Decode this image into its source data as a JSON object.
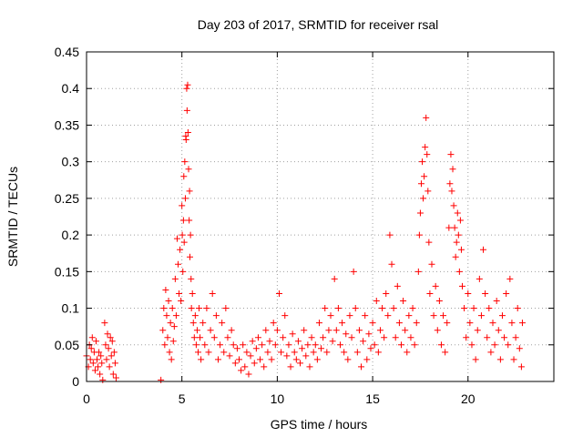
{
  "chart_data": {
    "type": "scatter",
    "title": "Day 203 of 2017, SRMTID for receiver rsal",
    "xlabel": "GPS time / hours",
    "ylabel": "SRMTID / TECUs",
    "xlim": [
      0,
      24.5
    ],
    "ylim": [
      0,
      0.45
    ],
    "xticks": [
      0,
      5,
      10,
      15,
      20
    ],
    "xtick_labels": [
      "0",
      "5",
      "10",
      "15",
      "20"
    ],
    "yticks": [
      0,
      0.05,
      0.1,
      0.15,
      0.2,
      0.25,
      0.3,
      0.35,
      0.4,
      0.45
    ],
    "ytick_labels": [
      "0",
      "0.05",
      "0.1",
      "0.15",
      "0.2",
      "0.25",
      "0.3",
      "0.35",
      "0.4",
      "0.45"
    ],
    "grid": true,
    "marker": "+",
    "color": "#ff0000",
    "series": [
      {
        "name": "SRMTID",
        "points": [
          [
            0.0,
            0.035
          ],
          [
            0.1,
            0.02
          ],
          [
            0.15,
            0.05
          ],
          [
            0.2,
            0.03
          ],
          [
            0.25,
            0.045
          ],
          [
            0.3,
            0.06
          ],
          [
            0.35,
            0.025
          ],
          [
            0.4,
            0.04
          ],
          [
            0.45,
            0.015
          ],
          [
            0.5,
            0.055
          ],
          [
            0.55,
            0.03
          ],
          [
            0.6,
            0.02
          ],
          [
            0.65,
            0.04
          ],
          [
            0.7,
            0.01
          ],
          [
            0.75,
            0.035
          ],
          [
            0.8,
            0.025
          ],
          [
            0.85,
            0.002
          ],
          [
            0.95,
            0.08
          ],
          [
            1.0,
            0.05
          ],
          [
            1.05,
            0.03
          ],
          [
            1.1,
            0.065
          ],
          [
            1.15,
            0.045
          ],
          [
            1.2,
            0.02
          ],
          [
            1.25,
            0.06
          ],
          [
            1.3,
            0.035
          ],
          [
            1.35,
            0.055
          ],
          [
            1.4,
            0.01
          ],
          [
            1.45,
            0.04
          ],
          [
            1.5,
            0.025
          ],
          [
            1.55,
            0.005
          ],
          [
            3.9,
            0.002
          ],
          [
            4.0,
            0.07
          ],
          [
            4.05,
            0.1
          ],
          [
            4.1,
            0.05
          ],
          [
            4.15,
            0.125
          ],
          [
            4.2,
            0.09
          ],
          [
            4.25,
            0.06
          ],
          [
            4.3,
            0.11
          ],
          [
            4.35,
            0.04
          ],
          [
            4.4,
            0.08
          ],
          [
            4.45,
            0.03
          ],
          [
            4.5,
            0.1
          ],
          [
            4.55,
            0.055
          ],
          [
            4.6,
            0.075
          ],
          [
            4.65,
            0.14
          ],
          [
            4.7,
            0.09
          ],
          [
            4.75,
            0.195
          ],
          [
            4.8,
            0.16
          ],
          [
            4.85,
            0.12
          ],
          [
            4.9,
            0.18
          ],
          [
            4.95,
            0.11
          ],
          [
            5.0,
            0.24
          ],
          [
            5.02,
            0.2
          ],
          [
            5.05,
            0.15
          ],
          [
            5.08,
            0.22
          ],
          [
            5.1,
            0.28
          ],
          [
            5.12,
            0.19
          ],
          [
            5.15,
            0.3
          ],
          [
            5.18,
            0.25
          ],
          [
            5.2,
            0.335
          ],
          [
            5.22,
            0.33
          ],
          [
            5.25,
            0.4
          ],
          [
            5.27,
            0.37
          ],
          [
            5.3,
            0.405
          ],
          [
            5.32,
            0.34
          ],
          [
            5.35,
            0.29
          ],
          [
            5.38,
            0.22
          ],
          [
            5.4,
            0.26
          ],
          [
            5.42,
            0.17
          ],
          [
            5.45,
            0.2
          ],
          [
            5.48,
            0.14
          ],
          [
            5.5,
            0.1
          ],
          [
            5.55,
            0.12
          ],
          [
            5.6,
            0.08
          ],
          [
            5.65,
            0.06
          ],
          [
            5.7,
            0.09
          ],
          [
            5.75,
            0.05
          ],
          [
            5.8,
            0.07
          ],
          [
            5.85,
            0.04
          ],
          [
            5.9,
            0.1
          ],
          [
            5.95,
            0.06
          ],
          [
            6.0,
            0.03
          ],
          [
            6.1,
            0.08
          ],
          [
            6.2,
            0.05
          ],
          [
            6.3,
            0.1
          ],
          [
            6.4,
            0.04
          ],
          [
            6.5,
            0.07
          ],
          [
            6.6,
            0.12
          ],
          [
            6.7,
            0.06
          ],
          [
            6.8,
            0.09
          ],
          [
            6.9,
            0.03
          ],
          [
            7.0,
            0.05
          ],
          [
            7.1,
            0.08
          ],
          [
            7.2,
            0.04
          ],
          [
            7.3,
            0.1
          ],
          [
            7.4,
            0.06
          ],
          [
            7.5,
            0.035
          ],
          [
            7.6,
            0.07
          ],
          [
            7.7,
            0.05
          ],
          [
            7.8,
            0.025
          ],
          [
            7.9,
            0.045
          ],
          [
            8.0,
            0.03
          ],
          [
            8.1,
            0.015
          ],
          [
            8.2,
            0.05
          ],
          [
            8.3,
            0.02
          ],
          [
            8.4,
            0.04
          ],
          [
            8.5,
            0.01
          ],
          [
            8.6,
            0.035
          ],
          [
            8.7,
            0.055
          ],
          [
            8.8,
            0.025
          ],
          [
            8.9,
            0.045
          ],
          [
            9.0,
            0.06
          ],
          [
            9.1,
            0.03
          ],
          [
            9.2,
            0.05
          ],
          [
            9.3,
            0.02
          ],
          [
            9.4,
            0.07
          ],
          [
            9.5,
            0.04
          ],
          [
            9.6,
            0.055
          ],
          [
            9.7,
            0.03
          ],
          [
            9.8,
            0.08
          ],
          [
            9.9,
            0.05
          ],
          [
            10.0,
            0.07
          ],
          [
            10.1,
            0.12
          ],
          [
            10.2,
            0.04
          ],
          [
            10.3,
            0.06
          ],
          [
            10.4,
            0.09
          ],
          [
            10.5,
            0.035
          ],
          [
            10.6,
            0.05
          ],
          [
            10.7,
            0.02
          ],
          [
            10.8,
            0.065
          ],
          [
            10.9,
            0.04
          ],
          [
            11.0,
            0.03
          ],
          [
            11.1,
            0.055
          ],
          [
            11.2,
            0.025
          ],
          [
            11.3,
            0.045
          ],
          [
            11.4,
            0.07
          ],
          [
            11.5,
            0.035
          ],
          [
            11.6,
            0.05
          ],
          [
            11.7,
            0.02
          ],
          [
            11.8,
            0.06
          ],
          [
            11.9,
            0.04
          ],
          [
            12.0,
            0.05
          ],
          [
            12.1,
            0.03
          ],
          [
            12.2,
            0.08
          ],
          [
            12.3,
            0.045
          ],
          [
            12.4,
            0.06
          ],
          [
            12.5,
            0.1
          ],
          [
            12.6,
            0.04
          ],
          [
            12.7,
            0.07
          ],
          [
            12.8,
            0.09
          ],
          [
            12.9,
            0.055
          ],
          [
            13.0,
            0.14
          ],
          [
            13.1,
            0.07
          ],
          [
            13.2,
            0.1
          ],
          [
            13.3,
            0.05
          ],
          [
            13.4,
            0.08
          ],
          [
            13.5,
            0.04
          ],
          [
            13.6,
            0.065
          ],
          [
            13.7,
            0.03
          ],
          [
            13.8,
            0.09
          ],
          [
            13.9,
            0.06
          ],
          [
            14.0,
            0.15
          ],
          [
            14.1,
            0.1
          ],
          [
            14.2,
            0.04
          ],
          [
            14.3,
            0.07
          ],
          [
            14.4,
            0.02
          ],
          [
            14.5,
            0.055
          ],
          [
            14.6,
            0.09
          ],
          [
            14.7,
            0.03
          ],
          [
            14.8,
            0.065
          ],
          [
            14.9,
            0.045
          ],
          [
            15.0,
            0.08
          ],
          [
            15.1,
            0.05
          ],
          [
            15.2,
            0.11
          ],
          [
            15.3,
            0.04
          ],
          [
            15.4,
            0.07
          ],
          [
            15.5,
            0.1
          ],
          [
            15.6,
            0.06
          ],
          [
            15.7,
            0.12
          ],
          [
            15.8,
            0.09
          ],
          [
            15.9,
            0.2
          ],
          [
            16.0,
            0.16
          ],
          [
            16.1,
            0.1
          ],
          [
            16.2,
            0.06
          ],
          [
            16.3,
            0.13
          ],
          [
            16.4,
            0.08
          ],
          [
            16.5,
            0.05
          ],
          [
            16.6,
            0.11
          ],
          [
            16.7,
            0.07
          ],
          [
            16.8,
            0.04
          ],
          [
            16.9,
            0.09
          ],
          [
            17.0,
            0.06
          ],
          [
            17.1,
            0.1
          ],
          [
            17.2,
            0.05
          ],
          [
            17.3,
            0.08
          ],
          [
            17.4,
            0.15
          ],
          [
            17.45,
            0.2
          ],
          [
            17.5,
            0.23
          ],
          [
            17.55,
            0.27
          ],
          [
            17.6,
            0.3
          ],
          [
            17.65,
            0.25
          ],
          [
            17.7,
            0.28
          ],
          [
            17.75,
            0.32
          ],
          [
            17.8,
            0.36
          ],
          [
            17.85,
            0.31
          ],
          [
            17.9,
            0.26
          ],
          [
            17.95,
            0.19
          ],
          [
            18.0,
            0.12
          ],
          [
            18.1,
            0.16
          ],
          [
            18.2,
            0.09
          ],
          [
            18.3,
            0.13
          ],
          [
            18.4,
            0.07
          ],
          [
            18.5,
            0.11
          ],
          [
            18.6,
            0.05
          ],
          [
            18.7,
            0.09
          ],
          [
            18.8,
            0.04
          ],
          [
            18.9,
            0.08
          ],
          [
            19.0,
            0.21
          ],
          [
            19.05,
            0.27
          ],
          [
            19.1,
            0.31
          ],
          [
            19.15,
            0.26
          ],
          [
            19.2,
            0.29
          ],
          [
            19.25,
            0.24
          ],
          [
            19.3,
            0.21
          ],
          [
            19.35,
            0.17
          ],
          [
            19.4,
            0.19
          ],
          [
            19.45,
            0.23
          ],
          [
            19.5,
            0.2
          ],
          [
            19.55,
            0.15
          ],
          [
            19.6,
            0.22
          ],
          [
            19.65,
            0.18
          ],
          [
            19.7,
            0.13
          ],
          [
            19.8,
            0.1
          ],
          [
            19.9,
            0.06
          ],
          [
            20.0,
            0.12
          ],
          [
            20.1,
            0.08
          ],
          [
            20.2,
            0.05
          ],
          [
            20.3,
            0.1
          ],
          [
            20.4,
            0.03
          ],
          [
            20.5,
            0.07
          ],
          [
            20.6,
            0.14
          ],
          [
            20.7,
            0.09
          ],
          [
            20.8,
            0.18
          ],
          [
            20.9,
            0.12
          ],
          [
            21.0,
            0.06
          ],
          [
            21.1,
            0.1
          ],
          [
            21.2,
            0.04
          ],
          [
            21.3,
            0.08
          ],
          [
            21.4,
            0.05
          ],
          [
            21.5,
            0.11
          ],
          [
            21.6,
            0.07
          ],
          [
            21.7,
            0.03
          ],
          [
            21.8,
            0.09
          ],
          [
            21.9,
            0.06
          ],
          [
            22.0,
            0.12
          ],
          [
            22.1,
            0.05
          ],
          [
            22.2,
            0.14
          ],
          [
            22.3,
            0.08
          ],
          [
            22.4,
            0.03
          ],
          [
            22.5,
            0.06
          ],
          [
            22.6,
            0.1
          ],
          [
            22.7,
            0.045
          ],
          [
            22.8,
            0.02
          ],
          [
            22.85,
            0.08
          ]
        ]
      }
    ]
  }
}
